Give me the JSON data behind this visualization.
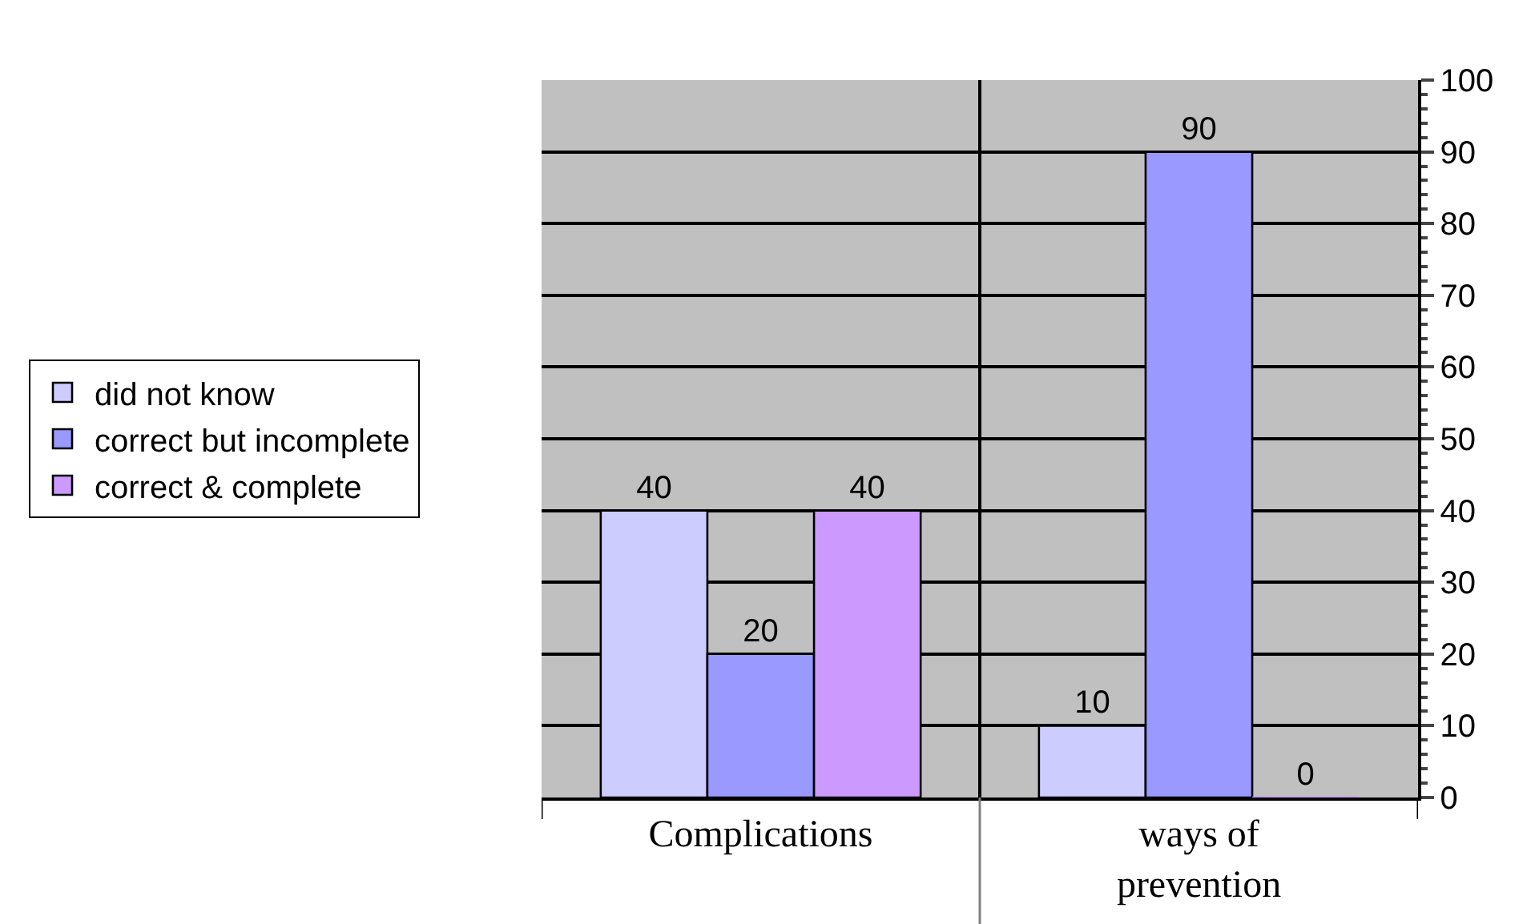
{
  "chart_data": {
    "type": "bar",
    "categories": [
      "Complications",
      "ways of prevention"
    ],
    "series": [
      {
        "name": "did not know",
        "color": "#ccccff",
        "values": [
          40,
          10
        ]
      },
      {
        "name": "correct but incomplete",
        "color": "#9999ff",
        "values": [
          20,
          90
        ]
      },
      {
        "name": "correct & complete",
        "color": "#cc99ff",
        "values": [
          40,
          0
        ]
      }
    ],
    "ylim": [
      0,
      100
    ],
    "yticks": [
      0,
      10,
      20,
      30,
      40,
      50,
      60,
      70,
      80,
      90,
      100
    ],
    "grid": true,
    "legend": "left",
    "data_labels": true
  }
}
